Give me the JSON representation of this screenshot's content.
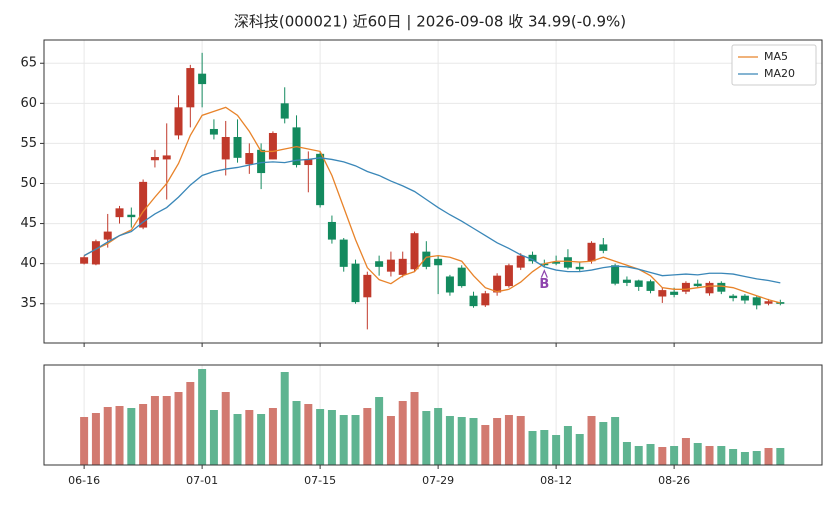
{
  "chart_data": [
    {
      "type": "candlestick",
      "title": "深科技(000021) 近60日  |  2026-09-08 收 34.99(-0.9%)",
      "categories": [
        "06-16",
        null,
        null,
        null,
        null,
        null,
        null,
        null,
        null,
        null,
        "07-01",
        null,
        null,
        null,
        null,
        null,
        null,
        null,
        null,
        null,
        "07-15",
        null,
        null,
        null,
        null,
        null,
        null,
        null,
        null,
        null,
        "07-29",
        null,
        null,
        null,
        null,
        null,
        null,
        null,
        null,
        null,
        "08-12",
        null,
        null,
        null,
        null,
        null,
        null,
        null,
        null,
        null,
        "08-26",
        null,
        null,
        null,
        null,
        null,
        null,
        null,
        null,
        null
      ],
      "open": [
        40,
        39.9,
        43,
        45.8,
        46.1,
        44.5,
        52.9,
        53,
        56,
        59.5,
        63.7,
        56.8,
        53,
        55.8,
        52.4,
        54.2,
        53,
        60,
        57,
        52.3,
        53.7,
        45.2,
        43,
        40,
        35.8,
        40.3,
        39,
        38.6,
        39.3,
        41.5,
        40.6,
        38.4,
        39.5,
        36,
        34.8,
        36.4,
        37.2,
        39.5,
        41.1,
        40,
        40.2,
        40.8,
        39.6,
        40.3,
        42.4,
        39.8,
        38,
        37.9,
        37.8,
        35.9,
        36.5,
        36.5,
        37.5,
        36.3,
        37.6,
        36,
        36,
        35.8,
        35,
        35.2
      ],
      "high": [
        41,
        43,
        46.2,
        47.2,
        47,
        50.5,
        54.2,
        57.5,
        61,
        64.8,
        66.3,
        58,
        57.8,
        58,
        55,
        55,
        56.5,
        62,
        58.5,
        54,
        54,
        46,
        43.2,
        40.5,
        39,
        41,
        41.5,
        41.5,
        44,
        42.8,
        41,
        38.6,
        39.8,
        36.5,
        36.6,
        38.8,
        40,
        41.3,
        41.5,
        40.5,
        41,
        41.8,
        40.2,
        42.8,
        43.2,
        40,
        38.4,
        38,
        38,
        37,
        37,
        37.8,
        38,
        37.8,
        37.8,
        36.2,
        36.2,
        36,
        35.6,
        35.5
      ],
      "low": [
        39.9,
        39.8,
        42,
        45,
        44.5,
        44.3,
        52,
        48,
        55.5,
        57,
        59.5,
        55.5,
        51,
        52.6,
        51.2,
        49.3,
        53,
        57.5,
        52,
        48.9,
        47,
        42.5,
        39,
        35,
        31.8,
        38.5,
        38.4,
        38.3,
        39,
        39.3,
        36.2,
        36,
        37,
        34.5,
        34.6,
        36,
        37,
        39.2,
        40,
        39.5,
        39.8,
        39.3,
        39,
        40,
        41.3,
        37.3,
        37.2,
        36.6,
        36.3,
        35.1,
        35.8,
        36.2,
        37,
        36,
        36.2,
        35.3,
        35,
        34.3,
        34.8,
        34.8
      ],
      "close": [
        40.8,
        42.8,
        44,
        46.9,
        45.8,
        50.2,
        53.3,
        53.5,
        59.5,
        64.4,
        62.4,
        56.1,
        55.8,
        53.2,
        53.8,
        51.3,
        56.3,
        58.1,
        52.3,
        53,
        47.3,
        43,
        39.6,
        35.2,
        38.6,
        39.6,
        40.5,
        40.6,
        43.8,
        39.6,
        39.8,
        36.4,
        37.2,
        34.7,
        36.3,
        38.5,
        39.8,
        41,
        40.3,
        39.8,
        40,
        39.5,
        39.3,
        42.6,
        41.6,
        37.5,
        37.6,
        37.1,
        36.6,
        36.7,
        36.1,
        37.6,
        37.2,
        37.6,
        36.5,
        35.7,
        35.4,
        34.8,
        35.31,
        34.99
      ],
      "up_color": "#c0392b",
      "down_color": "#138a5e",
      "series": [
        {
          "name": "MA5",
          "color": "#e8832a",
          "values": [
            41,
            41.8,
            42.5,
            43.5,
            44.2,
            46.5,
            48.3,
            50,
            52.5,
            56,
            58.5,
            59,
            59.5,
            58.5,
            56.5,
            54,
            54,
            54.3,
            54.6,
            54.3,
            54,
            51,
            47,
            43,
            39.5,
            38,
            37.5,
            38.5,
            39,
            40.8,
            41,
            40.8,
            40.3,
            38.5,
            37,
            36.5,
            36.8,
            37.7,
            39,
            40,
            40.3,
            40.3,
            40.2,
            40.3,
            40.8,
            40.3,
            39.8,
            39.3,
            38.5,
            37,
            36.8,
            36.8,
            37,
            37.2,
            37.2,
            37,
            36.5,
            36,
            35.5,
            35.1
          ]
        },
        {
          "name": "MA20",
          "color": "#3a87b8",
          "values": [
            41,
            41.8,
            42.7,
            43.5,
            44,
            45.2,
            46.2,
            47,
            48.3,
            49.8,
            51,
            51.5,
            51.8,
            52,
            52.3,
            52.6,
            52.7,
            52.6,
            52.9,
            53,
            53.2,
            53,
            52.7,
            52.2,
            51.5,
            51,
            50.3,
            49.7,
            49,
            48,
            47,
            46.1,
            45.3,
            44.4,
            43.5,
            42.6,
            41.9,
            41.1,
            40.5,
            39.6,
            39.2,
            39,
            39,
            39.2,
            39.5,
            39.7,
            39.6,
            39.3,
            38.9,
            38.5,
            38.6,
            38.7,
            38.6,
            38.8,
            38.8,
            38.7,
            38.4,
            38.1,
            37.9,
            37.6
          ]
        }
      ],
      "annotations": [
        {
          "text": "B",
          "index": 39,
          "color": "#8e44ad"
        }
      ],
      "ylim": [
        30.1,
        67.9
      ],
      "yticks": [
        35,
        40,
        45,
        50,
        55,
        60,
        65
      ],
      "grid": true,
      "legend": "upper right"
    },
    {
      "type": "bar",
      "values": [
        48,
        52,
        58,
        59,
        57,
        61,
        69,
        69,
        73,
        83,
        96,
        55,
        73,
        51,
        55,
        51,
        57,
        93,
        64,
        61,
        56,
        55,
        50,
        50,
        57,
        68,
        49,
        64,
        73,
        54,
        57,
        49,
        48,
        47,
        40,
        47,
        50,
        49,
        34,
        35,
        30,
        39,
        31,
        49,
        43,
        48,
        23,
        19,
        21,
        18,
        19,
        27,
        22,
        19,
        19,
        16,
        13,
        14,
        17,
        17
      ],
      "up_color": "#d27a70",
      "down_color": "#5fb491",
      "ylim": [
        0,
        100
      ],
      "grid": true
    }
  ]
}
